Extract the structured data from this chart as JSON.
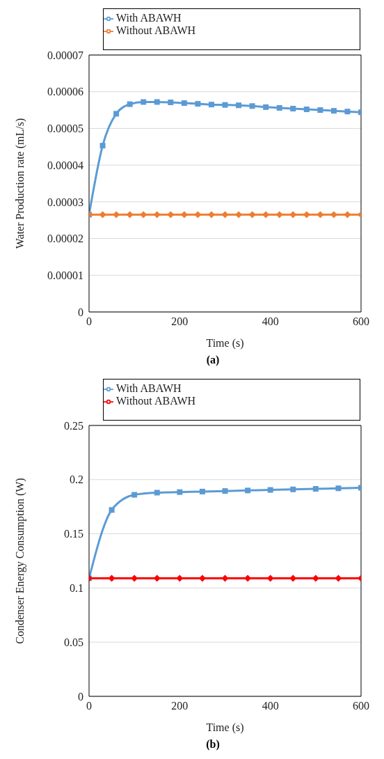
{
  "chart_data": [
    {
      "type": "line",
      "xlabel": "Time (s)",
      "ylabel": "Water Production rate (mL/s)",
      "annotations": [
        "(a)"
      ],
      "x": [
        0,
        30,
        60,
        90,
        120,
        150,
        180,
        210,
        240,
        270,
        300,
        330,
        360,
        390,
        420,
        450,
        480,
        510,
        540,
        570,
        600
      ],
      "series": [
        {
          "name": "With ABAWH",
          "color": "#5b9bd5",
          "marker": "square",
          "values": [
            2.65e-05,
            4.53e-05,
            5.4e-05,
            5.66e-05,
            5.72e-05,
            5.72e-05,
            5.71e-05,
            5.69e-05,
            5.67e-05,
            5.65e-05,
            5.64e-05,
            5.63e-05,
            5.61e-05,
            5.58e-05,
            5.56e-05,
            5.54e-05,
            5.52e-05,
            5.5e-05,
            5.48e-05,
            5.46e-05,
            5.44e-05
          ]
        },
        {
          "name": "Without ABAWH",
          "color": "#ed7d31",
          "marker": "diamond",
          "values": [
            2.65e-05,
            2.65e-05,
            2.65e-05,
            2.65e-05,
            2.65e-05,
            2.65e-05,
            2.65e-05,
            2.65e-05,
            2.65e-05,
            2.65e-05,
            2.65e-05,
            2.65e-05,
            2.65e-05,
            2.65e-05,
            2.65e-05,
            2.65e-05,
            2.65e-05,
            2.65e-05,
            2.65e-05,
            2.65e-05,
            2.65e-05
          ]
        }
      ],
      "xlim": [
        0,
        600
      ],
      "xticks": [
        0,
        200,
        400,
        600
      ],
      "ylim": [
        0,
        7e-05
      ],
      "yticks": [
        0,
        {
          "value": 1e-05,
          "label": "0.00001"
        },
        {
          "value": 2e-05,
          "label": "0.00002"
        },
        {
          "value": 3e-05,
          "label": "0.00003"
        },
        {
          "value": 4e-05,
          "label": "0.00004"
        },
        {
          "value": 5e-05,
          "label": "0.00005"
        },
        {
          "value": 6e-05,
          "label": "0.00006"
        },
        {
          "value": 7e-05,
          "label": "0.00007"
        }
      ],
      "grid": "y",
      "legend": "top",
      "line_style": "solid"
    },
    {
      "type": "line",
      "xlabel": "Time (s)",
      "ylabel": "Condenser Energy Consumption (W)",
      "annotations": [
        "(b)"
      ],
      "x": [
        0,
        50,
        100,
        150,
        200,
        250,
        300,
        350,
        400,
        450,
        500,
        550,
        600
      ],
      "series": [
        {
          "name": "With ABAWH",
          "color": "#5b9bd5",
          "marker": "square",
          "values": [
            0.109,
            0.172,
            0.186,
            0.188,
            0.1885,
            0.189,
            0.1895,
            0.19,
            0.1905,
            0.191,
            0.1915,
            0.192,
            0.1925
          ]
        },
        {
          "name": "Without ABAWH",
          "color": "#ff0000",
          "marker": "diamond",
          "values": [
            0.109,
            0.109,
            0.109,
            0.109,
            0.109,
            0.109,
            0.109,
            0.109,
            0.109,
            0.109,
            0.109,
            0.109,
            0.109
          ]
        }
      ],
      "xlim": [
        0,
        600
      ],
      "xticks": [
        0,
        200,
        400,
        600
      ],
      "ylim": [
        0,
        0.25
      ],
      "yticks": [
        0,
        0.05,
        0.1,
        0.15,
        0.2,
        0.25
      ],
      "grid": "y",
      "legend": "top",
      "line_style": "solid"
    }
  ]
}
